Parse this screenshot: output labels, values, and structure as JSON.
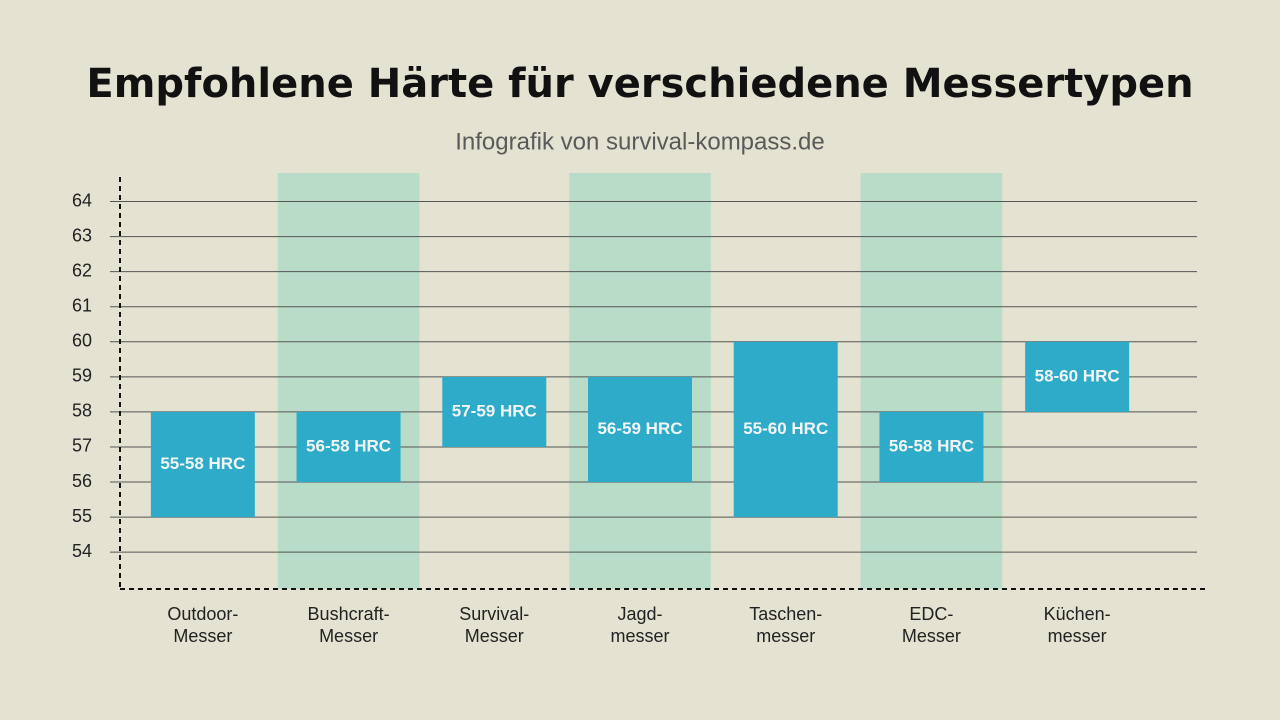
{
  "chart_data": {
    "type": "range-bar",
    "title": "Empfohlene Härte für verschiedene Messertypen",
    "subtitle": "Infografik von survival-kompass.de",
    "categories": [
      [
        "Outdoor-",
        "Messer"
      ],
      [
        "Bushcraft-",
        "Messer"
      ],
      [
        "Survival-",
        "Messer"
      ],
      [
        "Jagd-",
        "messer"
      ],
      [
        "Taschen-",
        "messer"
      ],
      [
        "EDC-",
        "Messer"
      ],
      [
        "Küchen-",
        "messer"
      ]
    ],
    "low": [
      55,
      56,
      57,
      56,
      55,
      56,
      58
    ],
    "high": [
      58,
      58,
      59,
      59,
      60,
      58,
      60
    ],
    "value_labels": [
      "55-58 HRC",
      "56-58 HRC",
      "57-59 HRC",
      "56-59 HRC",
      "55-60 HRC",
      "56-58 HRC",
      "58-60 HRC"
    ],
    "color": "#2eabc8",
    "highlight_color": "#b9dcc9",
    "ylim": [
      52.95,
      64.7
    ],
    "yticks": [
      54,
      55,
      56,
      57,
      58,
      59,
      60,
      61,
      62,
      63,
      64
    ],
    "grid": true
  }
}
